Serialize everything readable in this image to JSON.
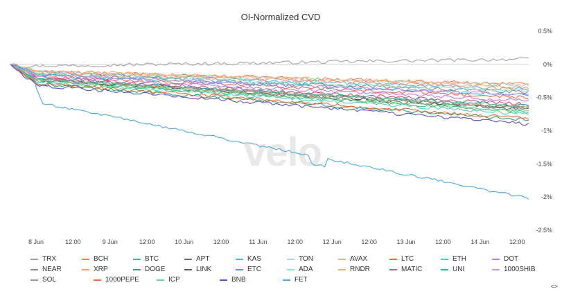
{
  "chart_data": {
    "type": "line",
    "title": "OI-Normalized CVD",
    "watermark": "velo",
    "x_ticks": [
      "8 Jun",
      "12:00",
      "9 Jun",
      "12:00",
      "10 Jun",
      "12:00",
      "11 Jun",
      "12:00",
      "12 Jun",
      "12:00",
      "13 Jun",
      "12:00",
      "14 Jun",
      "12:00"
    ],
    "y_ticks": [
      "0.5%",
      "0%",
      "-0.5%",
      "-1%",
      "-1.5%",
      "-2%",
      "-2.5%"
    ],
    "ylim": [
      -2.5,
      0.5
    ],
    "grid": false,
    "legend_position": "bottom",
    "series": [
      {
        "name": "TRX",
        "color": "#a3a3a3",
        "end": 0.08
      },
      {
        "name": "BCH",
        "color": "#f07b4f",
        "end": -0.3
      },
      {
        "name": "BTC",
        "color": "#48b87a",
        "end": -0.72
      },
      {
        "name": "APT",
        "color": "#6b6b6b",
        "end": -0.68
      },
      {
        "name": "KAS",
        "color": "#5ab3d9",
        "end": -0.37
      },
      {
        "name": "TON",
        "color": "#a9d8ee",
        "end": -0.32
      },
      {
        "name": "AVAX",
        "color": "#f3b27a",
        "end": -0.3
      },
      {
        "name": "LTC",
        "color": "#e8694a",
        "end": -0.5
      },
      {
        "name": "ETH",
        "color": "#4fd1b8",
        "end": -0.75
      },
      {
        "name": "DOT",
        "color": "#c678e0",
        "end": -0.55
      },
      {
        "name": "NEAR",
        "color": "#888888",
        "end": -0.42
      },
      {
        "name": "XRP",
        "color": "#f59a6b",
        "end": -0.35
      },
      {
        "name": "DOGE",
        "color": "#2f9e6b",
        "end": -0.84
      },
      {
        "name": "LINK",
        "color": "#555555",
        "end": -0.66
      },
      {
        "name": "ETC",
        "color": "#35a2d6",
        "end": -0.46
      },
      {
        "name": "ADA",
        "color": "#8fe0cf",
        "end": -0.4
      },
      {
        "name": "RNDR",
        "color": "#e5b26a",
        "end": -0.65
      },
      {
        "name": "MATIC",
        "color": "#c0528a",
        "end": -0.6
      },
      {
        "name": "UNI",
        "color": "#26b99b",
        "end": -0.63
      },
      {
        "name": "1000SHIB",
        "color": "#d28ee5",
        "end": -0.46
      },
      {
        "name": "SOL",
        "color": "#999999",
        "end": -0.66
      },
      {
        "name": "1000PEPE",
        "color": "#f06c35",
        "end": -0.82
      },
      {
        "name": "ICP",
        "color": "#6fcf8a",
        "end": -0.7
      },
      {
        "name": "BNB",
        "color": "#5b4fc4",
        "end": -0.9
      },
      {
        "name": "FET",
        "color": "#4aa8e0",
        "end": -2.02
      }
    ],
    "legend_rows": [
      [
        "TRX",
        "BCH",
        "BTC",
        "APT",
        "KAS",
        "TON",
        "AVAX",
        "LTC",
        "ETH",
        "DOT"
      ],
      [
        "NEAR",
        "XRP",
        "DOGE",
        "LINK",
        "ETC",
        "ADA",
        "RNDR",
        "MATIC",
        "UNI",
        "1000SHIB"
      ],
      [
        "SOL",
        "1000PEPE",
        "ICP",
        "BNB",
        "FET"
      ]
    ]
  },
  "nav_label": "<>"
}
